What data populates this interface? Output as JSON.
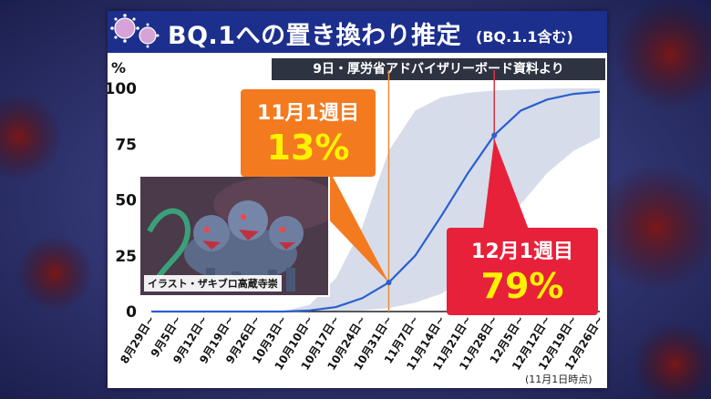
{
  "title": {
    "main": "BQ.1への置き換わり推定",
    "sub": "(BQ.1.1含む)"
  },
  "source": "9日・厚労省アドバイザリーボード資料より",
  "footnote": "(11月1日時点)",
  "colors": {
    "title_bar": "#1d2f8c",
    "line": "#2a5fd0",
    "band": "#cfd6e6",
    "marker_nov": "#f08a30",
    "marker_dec": "#e23040",
    "callout_nov": "#f47a20",
    "callout_dec": "#e8213a",
    "callout_value": "#fff200"
  },
  "callouts": [
    {
      "label": "11月1週目",
      "value": "13%"
    },
    {
      "label": "12月1週目",
      "value": "79%"
    }
  ],
  "illustration": {
    "icon": "three-headed-dog-illustration",
    "credit": "イラスト・ザキブロ高蔵寺崇"
  },
  "chart_data": {
    "type": "line",
    "ylabel": "%",
    "ylim": [
      0,
      100
    ],
    "yticks": [
      0,
      25,
      50,
      75,
      100
    ],
    "categories": [
      "8月29日~",
      "9月5日~",
      "9月12日~",
      "9月19日~",
      "9月26日~",
      "10月3日~",
      "10月10日~",
      "10月17日~",
      "10月24日~",
      "10月31日~",
      "11月7日~",
      "11月14日~",
      "11月21日~",
      "11月28日~",
      "12月5日~",
      "12月12日~",
      "12月19日~",
      "12月26日~"
    ],
    "series": [
      {
        "values": [
          0,
          0,
          0,
          0,
          0,
          0,
          0.5,
          2,
          6,
          13,
          25,
          43,
          62,
          79,
          90,
          95,
          97.5,
          98.5
        ]
      }
    ],
    "band_upper": [
      0,
      0,
      0,
      0,
      0,
      0,
      3,
      15,
      38,
      72,
      90,
      96,
      98,
      99,
      99.5,
      99.8,
      100,
      100
    ],
    "band_lower": [
      0,
      0,
      0,
      0,
      0,
      0,
      0,
      0.2,
      0.5,
      1.5,
      4,
      8,
      16,
      30,
      48,
      62,
      72,
      78
    ],
    "markers": [
      {
        "category": "10月31日~",
        "value": 13
      },
      {
        "category": "11月28日~",
        "value": 79
      }
    ]
  }
}
